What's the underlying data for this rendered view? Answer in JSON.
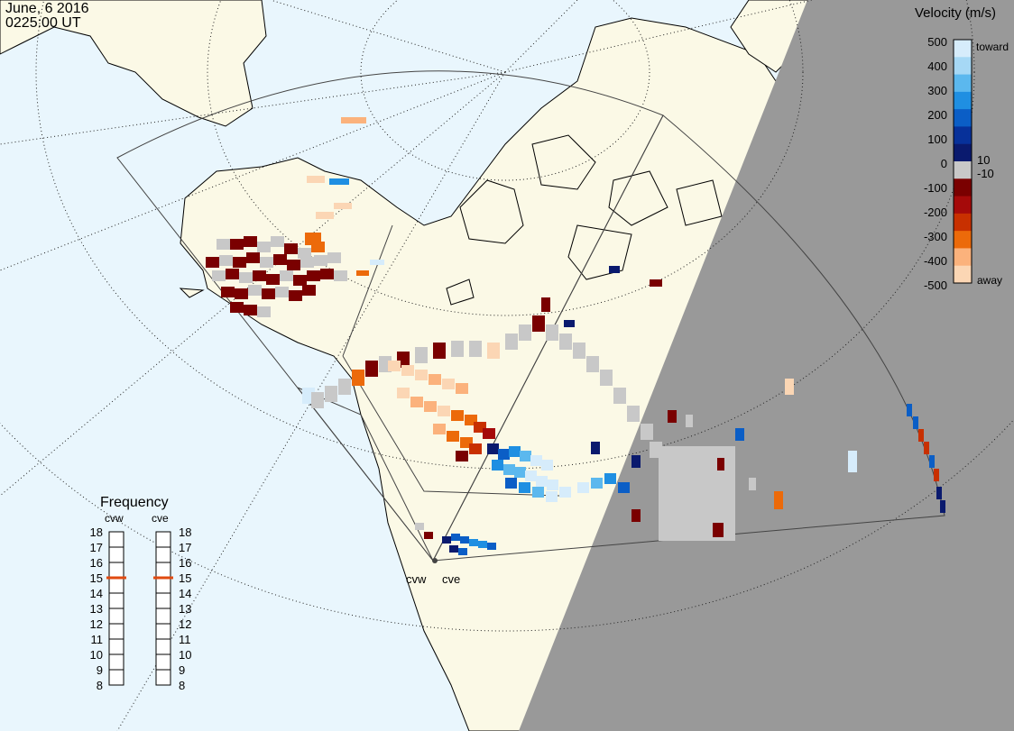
{
  "timestamp": {
    "date": "June, 6 2016",
    "time": "0225:00 UT"
  },
  "velocity_scale": {
    "title": "Velocity (m/s)",
    "end_labels": {
      "top": "toward",
      "bottom": "away"
    },
    "ticks": [
      "500",
      "400",
      "300",
      "200",
      "100",
      "10",
      "0",
      "-10",
      "-100",
      "-200",
      "-300",
      "-400",
      "-500"
    ],
    "colors": [
      "#d6ecfb",
      "#a6d8f5",
      "#5bb8ee",
      "#1f8fe2",
      "#0b5ec6",
      "#07319a",
      "#0a1a6e",
      "#c8c8c8",
      "#7a0000",
      "#a50a0a",
      "#c83000",
      "#ec6a0a",
      "#fbb27c",
      "#fbd6b4"
    ]
  },
  "frequency": {
    "title": "Frequency",
    "radars": [
      {
        "name": "cvw",
        "selected": 15
      },
      {
        "name": "cve",
        "selected": 15
      }
    ],
    "ticks": [
      "18",
      "17",
      "16",
      "15",
      "14",
      "13",
      "12",
      "11",
      "10",
      "9",
      "8"
    ],
    "marker_color": "#e04a10"
  },
  "sites": [
    {
      "name": "cvw"
    },
    {
      "name": "cve"
    }
  ],
  "colors": {
    "ocean": "#e9f6fd",
    "land": "#fbf9e6",
    "night": "#999999",
    "ground_scatter": "#c8c8c8"
  }
}
